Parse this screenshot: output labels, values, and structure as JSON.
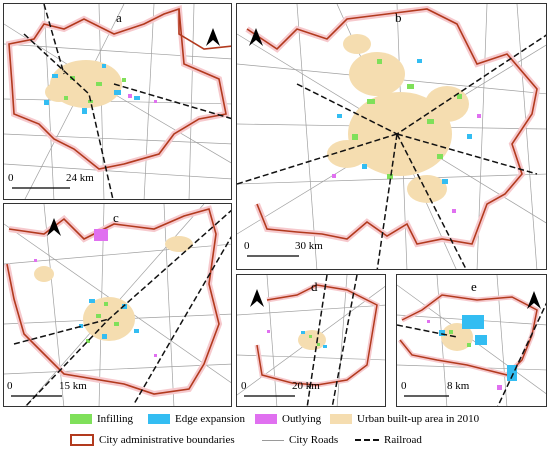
{
  "panels": [
    {
      "label": "a",
      "scale": "24 km"
    },
    {
      "label": "b",
      "scale": "30 km"
    },
    {
      "label": "c",
      "scale": "15 km"
    },
    {
      "label": "d",
      "scale": "20 km"
    },
    {
      "label": "e",
      "scale": "8 km"
    }
  ],
  "scale_zero": "0",
  "north_letter": "N",
  "legend": {
    "infilling": "Infilling",
    "edge": "Edge expansion",
    "outlying": "Outlying",
    "urban": "Urban built-up area in 2010",
    "boundary": "City administrative boundaries",
    "roads": "City Roads",
    "railroad": "Railroad"
  },
  "colors": {
    "infilling": "#7fe05a",
    "edge": "#33bdf2",
    "outlying": "#e070f0",
    "urban": "#f5ddb0",
    "boundary": "#b23a1e",
    "boundary_halo": "#f6c9cd",
    "roads": "#9a9a9a",
    "railroad": "#111111"
  }
}
